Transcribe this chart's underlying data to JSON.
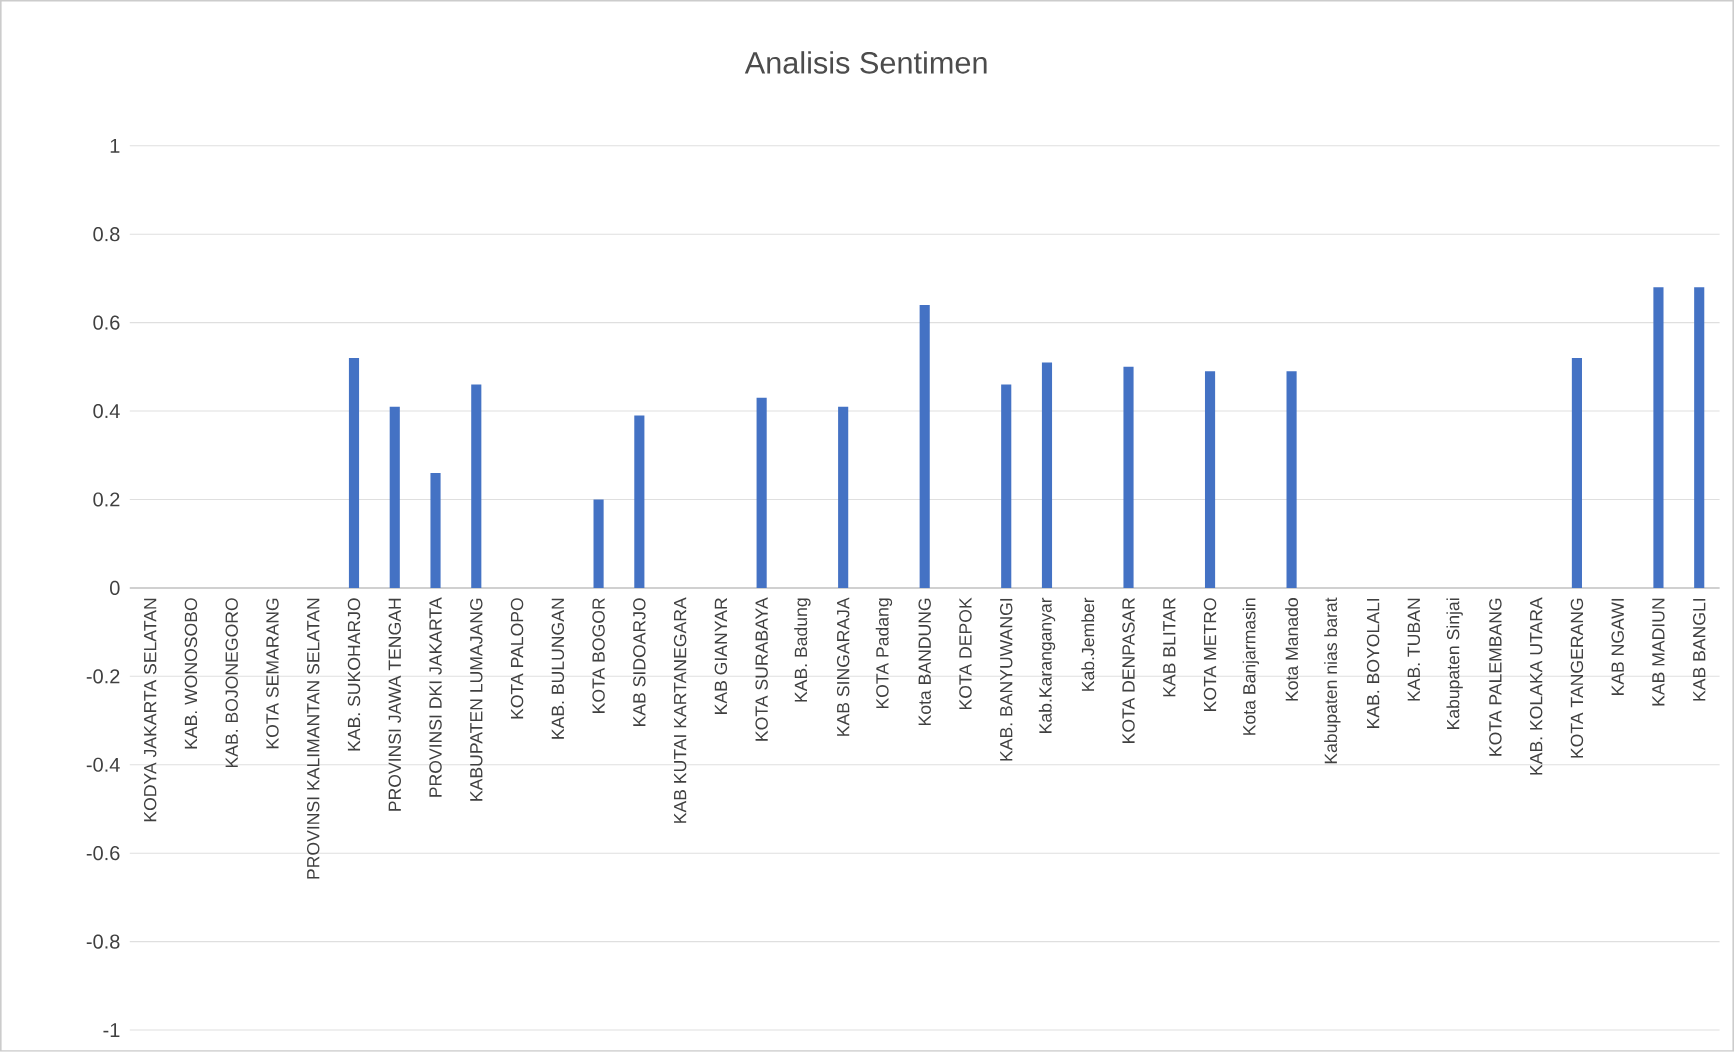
{
  "chart_data": {
    "type": "bar",
    "title": "Analisis Sentimen",
    "categories": [
      "KODYA JAKARTA SELATAN",
      "KAB. WONOSOBO",
      "KAB. BOJONEGORO",
      "KOTA SEMARANG",
      "PROVINSI KALIMANTAN SELATAN",
      "KAB. SUKOHARJO",
      "PROVINSI JAWA TENGAH",
      "PROVINSI DKI JAKARTA",
      "KABUPATEN LUMAJANG",
      "KOTA PALOPO",
      "KAB. BULUNGAN",
      "KOTA BOGOR",
      "KAB SIDOARJO",
      "KAB KUTAI KARTANEGARA",
      "KAB GIANYAR",
      "KOTA SURABAYA",
      "KAB. Badung",
      "KAB SINGARAJA",
      "KOTA Padang",
      "Kota BANDUNG",
      "KOTA DEPOK",
      "KAB. BANYUWANGI",
      "Kab.Karanganyar",
      "Kab.Jember",
      "KOTA DENPASAR",
      "KAB BLITAR",
      "KOTA METRO",
      "Kota Banjarmasin",
      "Kota Manado",
      "Kabupaten nias barat",
      "KAB. BOYOLALI",
      "KAB. TUBAN",
      "Kabupaten Sinjai",
      "KOTA PALEMBANG",
      "KAB. KOLAKA UTARA",
      "KOTA TANGERANG",
      "KAB NGAWI",
      "KAB MADIUN",
      "KAB BANGLI"
    ],
    "values": [
      0,
      0,
      0,
      0,
      0,
      0.52,
      0.41,
      0.26,
      0.46,
      0,
      0,
      0.2,
      0.39,
      0,
      0,
      0.43,
      0,
      0.41,
      0,
      0.64,
      0,
      0.46,
      0.51,
      0,
      0.5,
      0,
      0.49,
      0,
      0.49,
      0,
      0,
      0,
      0,
      0,
      0,
      0.52,
      0,
      0.68,
      0.68
    ],
    "color": "#4472c4",
    "ylim": [
      -1,
      1
    ],
    "yticks": [
      -1,
      -0.8,
      -0.6,
      -0.4,
      -0.2,
      0,
      0.2,
      0.4,
      0.6,
      0.8,
      1
    ],
    "grid": "y"
  }
}
